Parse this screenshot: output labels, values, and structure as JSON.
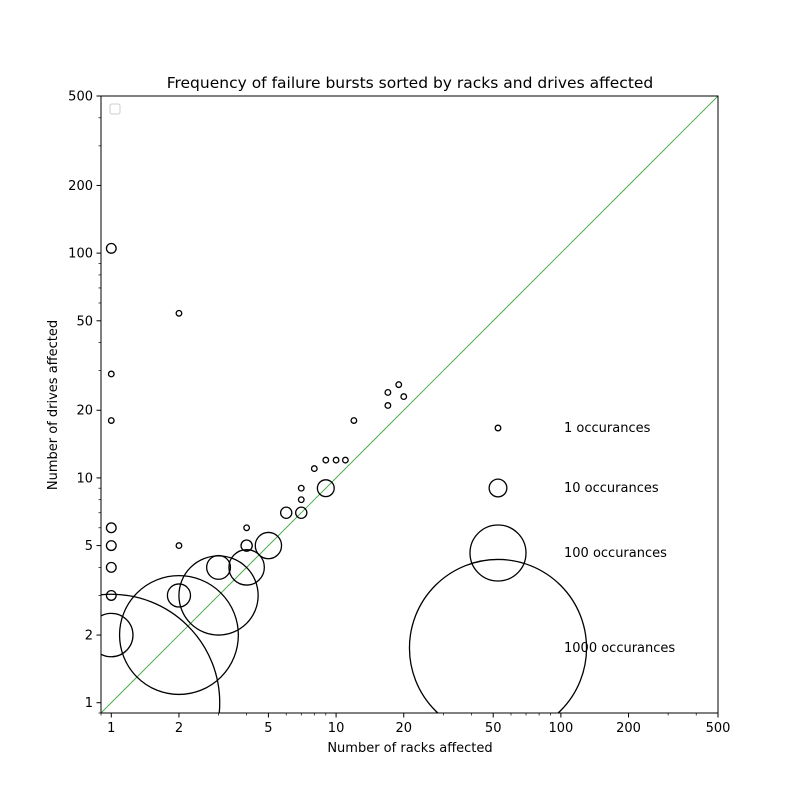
{
  "chart_data": {
    "type": "scatter",
    "title": "Frequency of failure bursts sorted by racks and drives affected",
    "xlabel": "Number of racks affected",
    "ylabel": "Number of drives affected",
    "x_scale": "log",
    "y_scale": "log",
    "xlim": [
      0.9,
      500
    ],
    "ylim": [
      0.9,
      500
    ],
    "xticks": [
      1,
      2,
      5,
      10,
      20,
      50,
      100,
      200,
      500
    ],
    "yticks": [
      1,
      2,
      5,
      10,
      20,
      50,
      100,
      200,
      500
    ],
    "xtick_labels": [
      "1",
      "2",
      "5",
      "10",
      "20",
      "50",
      "100",
      "200",
      "500"
    ],
    "ytick_labels": [
      "1",
      "2",
      "5",
      "10",
      "20",
      "50",
      "100",
      "200",
      "500"
    ],
    "diagonal_line": {
      "color": "#2ca02c",
      "equation": "y = x"
    },
    "marker_color": "#000000",
    "points": [
      {
        "x": 1,
        "y": 1,
        "count": 1500
      },
      {
        "x": 1,
        "y": 2,
        "count": 60
      },
      {
        "x": 1,
        "y": 3,
        "count": 3
      },
      {
        "x": 1,
        "y": 4,
        "count": 3
      },
      {
        "x": 1,
        "y": 5,
        "count": 3
      },
      {
        "x": 1,
        "y": 6,
        "count": 3
      },
      {
        "x": 1,
        "y": 18,
        "count": 1
      },
      {
        "x": 1,
        "y": 29,
        "count": 1
      },
      {
        "x": 1,
        "y": 105,
        "count": 3
      },
      {
        "x": 2,
        "y": 2,
        "count": 450
      },
      {
        "x": 2,
        "y": 3,
        "count": 17
      },
      {
        "x": 2,
        "y": 5,
        "count": 1
      },
      {
        "x": 2,
        "y": 54,
        "count": 1
      },
      {
        "x": 3,
        "y": 3,
        "count": 200
      },
      {
        "x": 3,
        "y": 4,
        "count": 18
      },
      {
        "x": 4,
        "y": 4,
        "count": 40
      },
      {
        "x": 4,
        "y": 5,
        "count": 4
      },
      {
        "x": 4,
        "y": 6,
        "count": 1
      },
      {
        "x": 5,
        "y": 5,
        "count": 22
      },
      {
        "x": 6,
        "y": 7,
        "count": 4
      },
      {
        "x": 7,
        "y": 7,
        "count": 4
      },
      {
        "x": 7,
        "y": 8,
        "count": 1
      },
      {
        "x": 7,
        "y": 9,
        "count": 1
      },
      {
        "x": 8,
        "y": 11,
        "count": 1
      },
      {
        "x": 9,
        "y": 9,
        "count": 9
      },
      {
        "x": 9,
        "y": 12,
        "count": 1
      },
      {
        "x": 10,
        "y": 12,
        "count": 1
      },
      {
        "x": 11,
        "y": 12,
        "count": 1
      },
      {
        "x": 12,
        "y": 18,
        "count": 1
      },
      {
        "x": 17,
        "y": 21,
        "count": 1
      },
      {
        "x": 17,
        "y": 24,
        "count": 1
      },
      {
        "x": 19,
        "y": 26,
        "count": 1
      },
      {
        "x": 20,
        "y": 23,
        "count": 1
      }
    ],
    "legend": {
      "entries": [
        {
          "count": 1,
          "label": "1 occurances"
        },
        {
          "count": 10,
          "label": "10 occurances"
        },
        {
          "count": 100,
          "label": "100 occurances"
        },
        {
          "count": 1000,
          "label": "1000 occurances"
        }
      ]
    }
  }
}
